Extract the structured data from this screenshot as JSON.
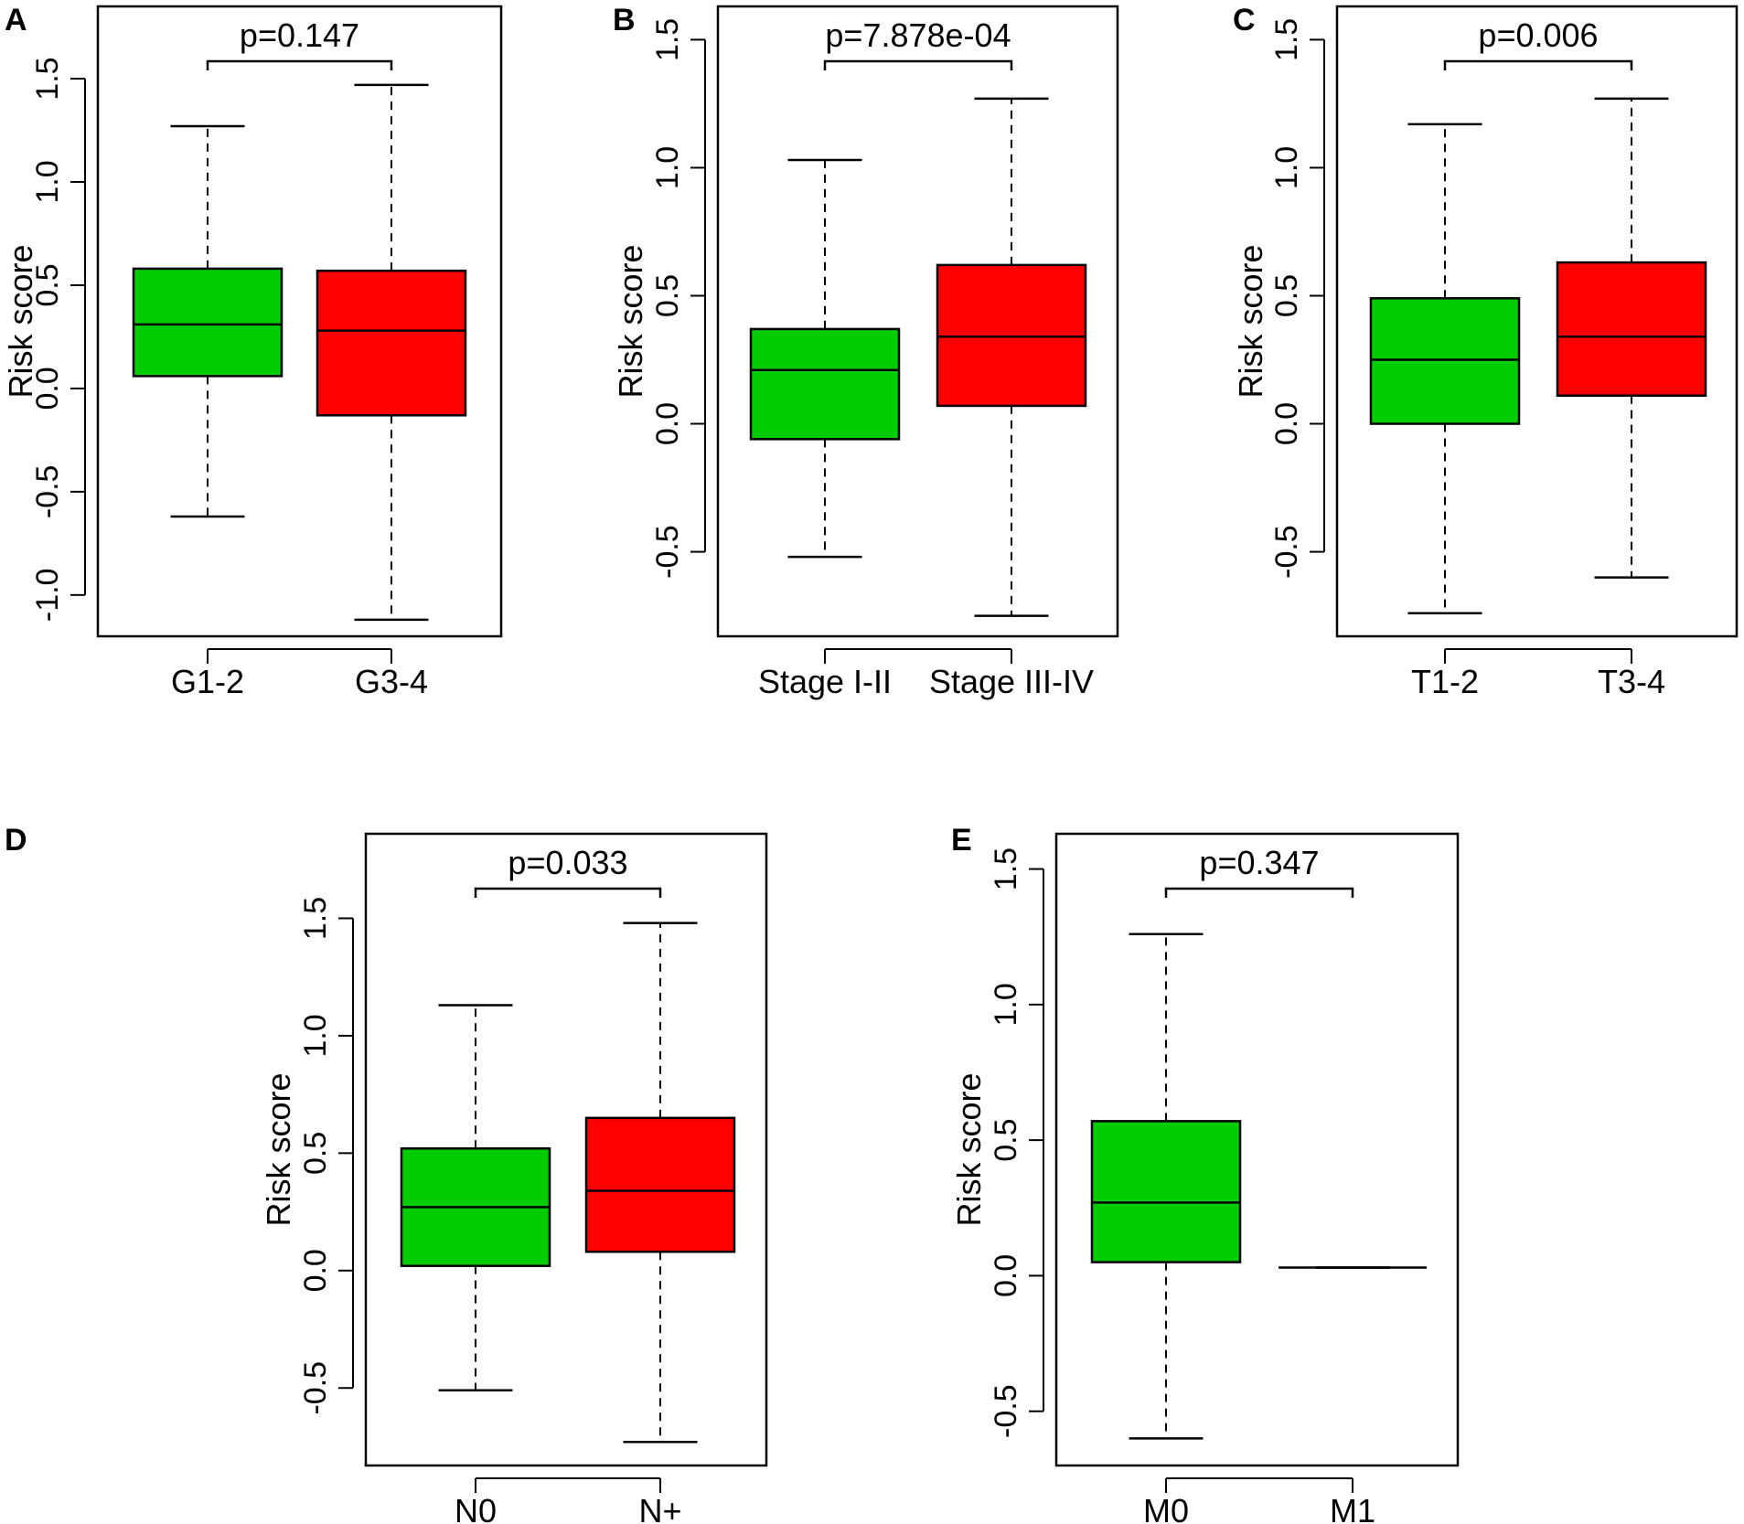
{
  "colors": {
    "group1": "#00CC00",
    "group2": "#FF0000",
    "stroke": "#000000"
  },
  "chart_data": [
    {
      "type": "boxplot",
      "panel": "A",
      "ylabel": "Risk score",
      "ylim": [
        -1.2,
        1.85
      ],
      "yticks": [
        -1.0,
        -0.5,
        0.0,
        0.5,
        1.0,
        1.5
      ],
      "ytick_labels": [
        "-1.0",
        "-0.5",
        "0.0",
        "0.5",
        "1.0",
        "1.5"
      ],
      "pvalue": "p=0.147",
      "categories": [
        "G1-2",
        "G3-4"
      ],
      "boxes": [
        {
          "name": "G1-2",
          "whisker_low": -0.62,
          "q1": 0.06,
          "median": 0.31,
          "q3": 0.58,
          "whisker_high": 1.27
        },
        {
          "name": "G3-4",
          "whisker_low": -1.12,
          "q1": -0.13,
          "median": 0.28,
          "q3": 0.57,
          "whisker_high": 1.47
        }
      ]
    },
    {
      "type": "boxplot",
      "panel": "B",
      "ylabel": "Risk score",
      "ylim": [
        -0.83,
        1.63
      ],
      "yticks": [
        -0.5,
        0.0,
        0.5,
        1.0,
        1.5
      ],
      "ytick_labels": [
        "-0.5",
        "0.0",
        "0.5",
        "1.0",
        "1.5"
      ],
      "pvalue": "p=7.878e-04",
      "categories": [
        "Stage I-II",
        "Stage III-IV"
      ],
      "boxes": [
        {
          "name": "Stage I-II",
          "whisker_low": -0.52,
          "q1": -0.06,
          "median": 0.21,
          "q3": 0.37,
          "whisker_high": 1.03
        },
        {
          "name": "Stage III-IV",
          "whisker_low": -0.75,
          "q1": 0.07,
          "median": 0.34,
          "q3": 0.62,
          "whisker_high": 1.27
        }
      ]
    },
    {
      "type": "boxplot",
      "panel": "C",
      "ylabel": "Risk score",
      "ylim": [
        -0.83,
        1.63
      ],
      "yticks": [
        -0.5,
        0.0,
        0.5,
        1.0,
        1.5
      ],
      "ytick_labels": [
        "-0.5",
        "0.0",
        "0.5",
        "1.0",
        "1.5"
      ],
      "pvalue": "p=0.006",
      "categories": [
        "T1-2",
        "T3-4"
      ],
      "boxes": [
        {
          "name": "T1-2",
          "whisker_low": -0.74,
          "q1": 0.0,
          "median": 0.25,
          "q3": 0.49,
          "whisker_high": 1.17
        },
        {
          "name": "T3-4",
          "whisker_low": -0.6,
          "q1": 0.11,
          "median": 0.34,
          "q3": 0.63,
          "whisker_high": 1.27
        }
      ]
    },
    {
      "type": "boxplot",
      "panel": "D",
      "ylabel": "Risk score",
      "ylim": [
        -0.83,
        1.86
      ],
      "yticks": [
        -0.5,
        0.0,
        0.5,
        1.0,
        1.5
      ],
      "ytick_labels": [
        "-0.5",
        "0.0",
        "0.5",
        "1.0",
        "1.5"
      ],
      "pvalue": "p=0.033",
      "categories": [
        "N0",
        "N+"
      ],
      "boxes": [
        {
          "name": "N0",
          "whisker_low": -0.51,
          "q1": 0.02,
          "median": 0.27,
          "q3": 0.52,
          "whisker_high": 1.13
        },
        {
          "name": "N+",
          "whisker_low": -0.73,
          "q1": 0.08,
          "median": 0.34,
          "q3": 0.65,
          "whisker_high": 1.48
        }
      ]
    },
    {
      "type": "boxplot",
      "panel": "E",
      "ylabel": "Risk score",
      "ylim": [
        -0.7,
        1.63
      ],
      "yticks": [
        -0.5,
        0.0,
        0.5,
        1.0,
        1.5
      ],
      "ytick_labels": [
        "-0.5",
        "0.0",
        "0.5",
        "1.0",
        "1.5"
      ],
      "pvalue": "p=0.347",
      "categories": [
        "M0",
        "M1"
      ],
      "boxes": [
        {
          "name": "M0",
          "whisker_low": -0.6,
          "q1": 0.05,
          "median": 0.27,
          "q3": 0.57,
          "whisker_high": 1.26
        },
        {
          "name": "M1",
          "whisker_low": 0.03,
          "q1": 0.03,
          "median": 0.03,
          "q3": 0.03,
          "whisker_high": 0.03
        }
      ]
    }
  ]
}
